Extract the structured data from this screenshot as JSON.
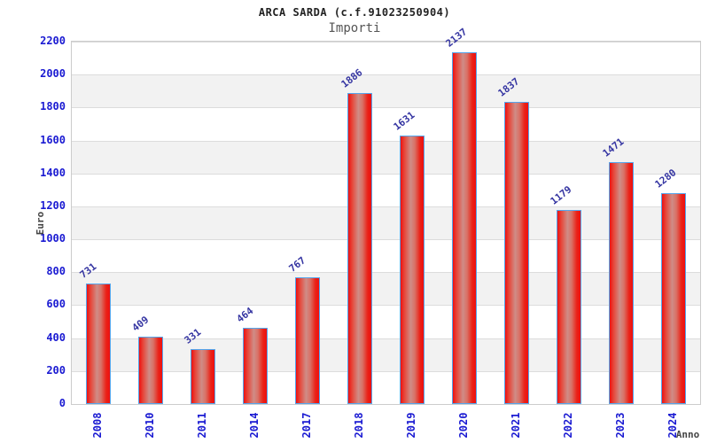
{
  "chart_data": {
    "type": "bar",
    "title": "ARCA SARDA (c.f.91023250904)",
    "subtitle": "Importi",
    "xlabel": "Anno",
    "ylabel": "Euro",
    "categories": [
      "2008",
      "2010",
      "2011",
      "2014",
      "2017",
      "2018",
      "2019",
      "2020",
      "2021",
      "2022",
      "2023",
      "2024"
    ],
    "values": [
      731,
      409,
      331,
      464,
      767,
      1886,
      1631,
      2137,
      1837,
      1179,
      1471,
      1280
    ],
    "ylim": [
      0,
      2200
    ],
    "ytick_step": 200,
    "yticks": [
      0,
      200,
      400,
      600,
      800,
      1000,
      1200,
      1400,
      1600,
      1800,
      2000,
      2200
    ],
    "grid": "horizontal-gridlines-with-alternating-bands",
    "legend": "none",
    "colors": {
      "bar_fill_edge": "#ee1111",
      "bar_fill_center": "#cf8d87",
      "bar_border": "#55a5ec",
      "axis_tick_text": "#1a1ad2",
      "value_label_text": "#3535a2",
      "band_shade": "#f2f2f2",
      "gridline": "#dcdcdc",
      "title_text": "#222222",
      "subtitle_text": "#555555",
      "axis_title_text": "#444444"
    }
  }
}
